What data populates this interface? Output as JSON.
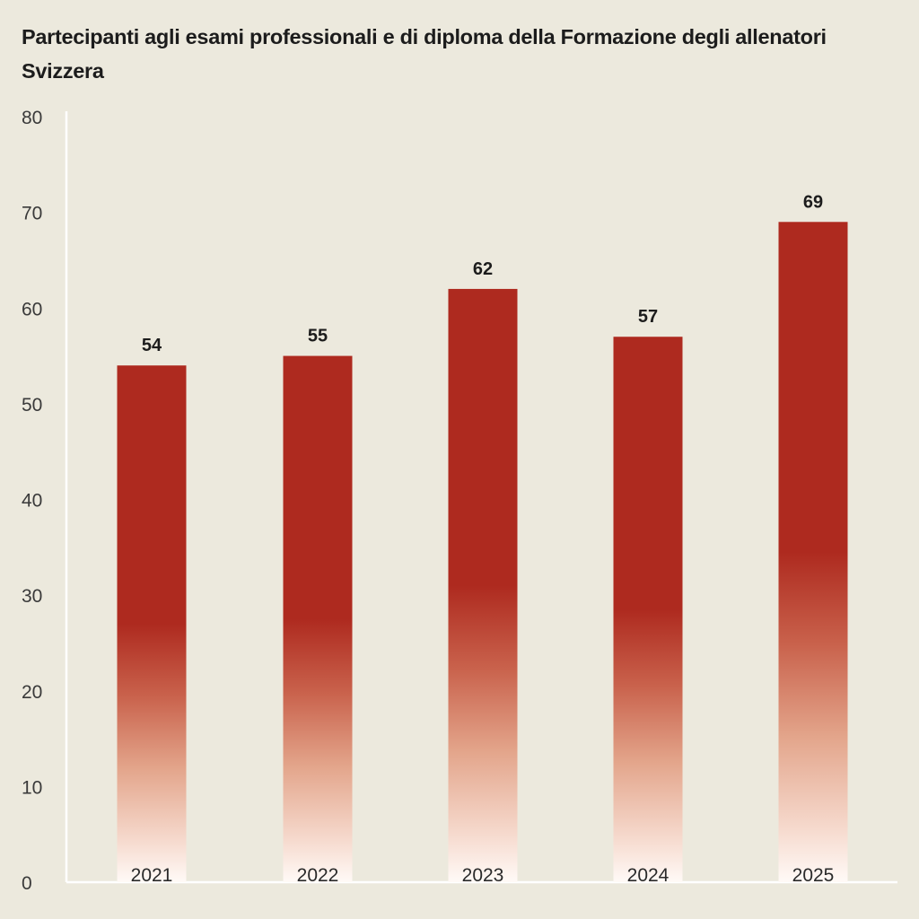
{
  "chart_data": {
    "type": "bar",
    "title": "Partecipanti agli esami professionali e di diploma della Formazione degli allenatori Svizzera",
    "categories": [
      "2021",
      "2022",
      "2023",
      "2024",
      "2025"
    ],
    "values": [
      54,
      55,
      62,
      57,
      69
    ],
    "xlabel": "",
    "ylabel": "",
    "ylim": [
      0,
      80
    ],
    "yticks": [
      0,
      10,
      20,
      30,
      40,
      50,
      60,
      70,
      80
    ],
    "grid": false,
    "bar_color": "#ae2a1f",
    "background": "#ece9dd"
  }
}
